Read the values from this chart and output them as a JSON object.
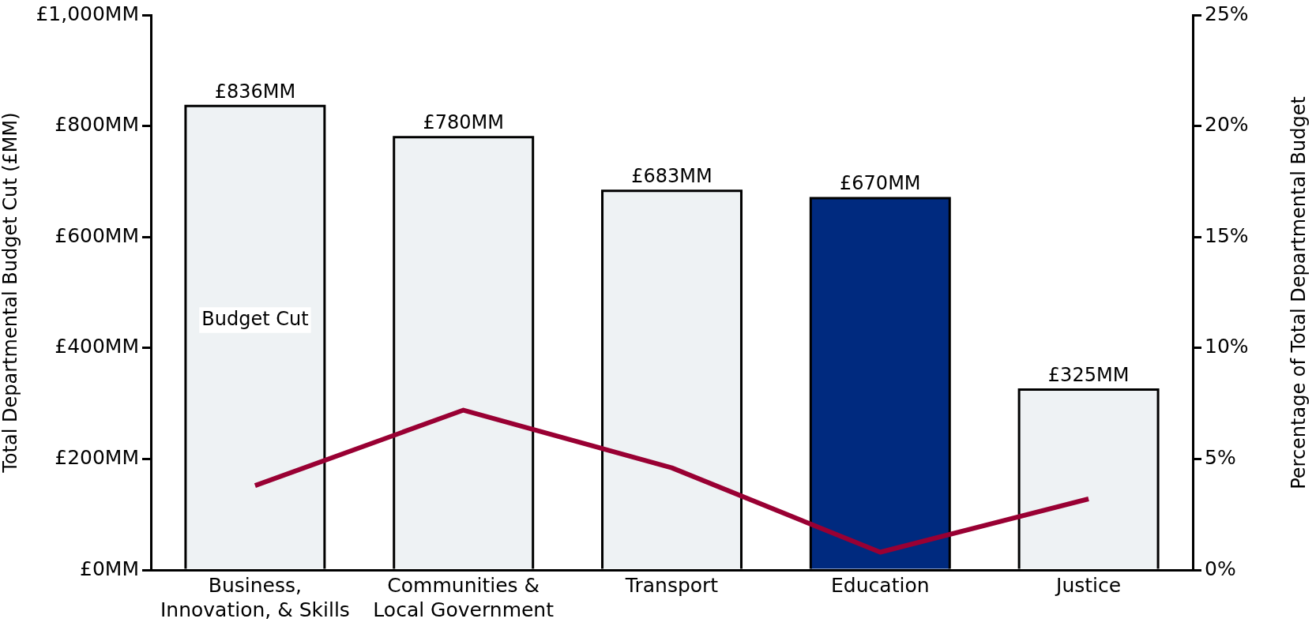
{
  "chart_data": {
    "type": "bar",
    "categories": [
      "Business,\nInnovation, & Skills",
      "Communities &\nLocal Government",
      "Transport",
      "Education",
      "Justice"
    ],
    "ylabel": "Total Departmental Budget Cut (£MM)",
    "y2label": "Percentage of Total Departmental Budget",
    "series": [
      {
        "name": "Budget Cut",
        "colors": [
          "#eef2f4",
          "#eef2f4",
          "#eef2f4",
          "#002a7f",
          "#eef2f4"
        ],
        "values": [
          836,
          780,
          683,
          670,
          325
        ],
        "value_labels": [
          "£836MM",
          "£780MM",
          "£683MM",
          "£670MM",
          "£325MM"
        ]
      },
      {
        "type": "line",
        "axis": "y2",
        "color": "#990033",
        "values": [
          3.8,
          7.2,
          4.6,
          0.8,
          3.2
        ]
      }
    ],
    "ylim": [
      0,
      1000
    ],
    "yticks": [
      {
        "value": 0,
        "label": "£0MM"
      },
      {
        "value": 200,
        "label": "£200MM"
      },
      {
        "value": 400,
        "label": "£400MM"
      },
      {
        "value": 600,
        "label": "£600MM"
      },
      {
        "value": 800,
        "label": "£800MM"
      },
      {
        "value": 1000,
        "label": "£1,000MM"
      }
    ],
    "y2lim": [
      0,
      25
    ],
    "y2ticks": [
      {
        "value": 0,
        "label": "0%"
      },
      {
        "value": 5,
        "label": "5%"
      },
      {
        "value": 10,
        "label": "10%"
      },
      {
        "value": 15,
        "label": "15%"
      },
      {
        "value": 20,
        "label": "20%"
      },
      {
        "value": 25,
        "label": "25%"
      }
    ],
    "grid": false,
    "legend": false,
    "marker": "none"
  }
}
